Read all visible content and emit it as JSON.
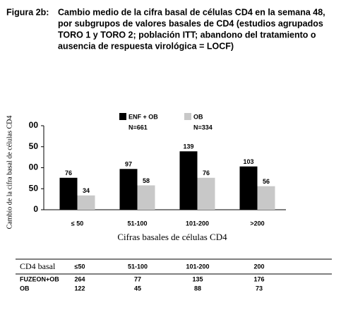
{
  "chart_data": {
    "type": "bar",
    "title_label": "Figura 2b:",
    "title": [
      "Cambio medio de la cifra basal de células CD4 en la semana 48,",
      "por subgrupos de valores basales de CD4 (estudios agrupados",
      "TORO 1 y TORO 2; población ITT; abandono del tratamiento o",
      "ausencia de respuesta virológica = LOCF)"
    ],
    "y_label": "Cambio de la cifra basal de células CD4",
    "x_label": "Cifras basales de células CD4",
    "categories": [
      "≤ 50",
      "51-100",
      "101-200",
      ">200"
    ],
    "series": [
      {
        "name": "ENF + OB",
        "n": "N=661",
        "color": "#000000",
        "values": [
          76,
          97,
          139,
          103
        ]
      },
      {
        "name": "OB",
        "n": "N=334",
        "color": "#c8c8c8",
        "values": [
          34,
          58,
          76,
          56
        ]
      }
    ],
    "ylim": [
      0,
      200
    ],
    "yticks": [
      0,
      50,
      {
        "value": 100,
        "label": "00"
      },
      {
        "value": 150,
        "label": "50"
      },
      {
        "value": 200,
        "label": "00"
      }
    ]
  },
  "table": {
    "rows": [
      [
        "CD4 basal",
        "≤50",
        "51-100",
        "101-200",
        "200"
      ],
      [
        "FUZEON+OB",
        "264",
        "77",
        "135",
        "176"
      ],
      [
        "OB",
        "122",
        "45",
        "88",
        "73"
      ]
    ]
  }
}
